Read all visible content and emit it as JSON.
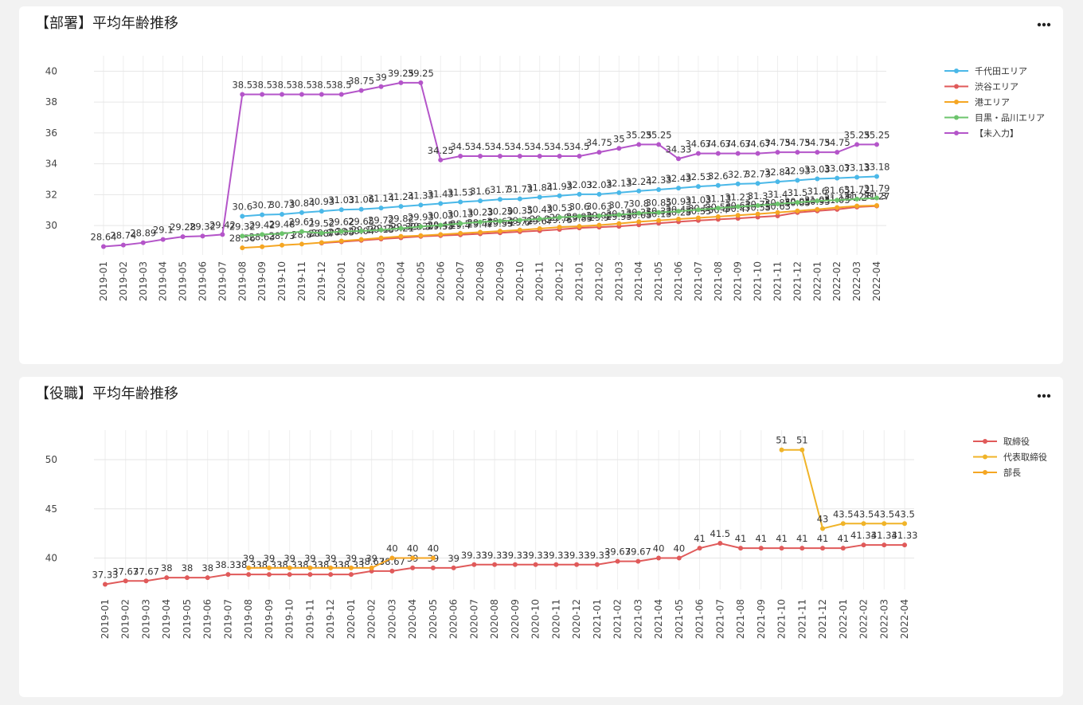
{
  "chart_data": [
    {
      "type": "line",
      "title": "【部署】平均年齢推移",
      "categories": [
        "2019-01",
        "2019-02",
        "2019-03",
        "2019-04",
        "2019-05",
        "2019-06",
        "2019-07",
        "2019-08",
        "2019-09",
        "2019-10",
        "2019-11",
        "2019-12",
        "2020-01",
        "2020-02",
        "2020-03",
        "2020-04",
        "2020-05",
        "2020-06",
        "2020-07",
        "2020-08",
        "2020-09",
        "2020-10",
        "2020-11",
        "2020-12",
        "2021-01",
        "2021-02",
        "2021-03",
        "2021-04",
        "2021-05",
        "2021-06",
        "2021-07",
        "2021-08",
        "2021-09",
        "2021-10",
        "2021-11",
        "2021-12",
        "2022-01",
        "2022-02",
        "2022-03",
        "2022-04"
      ],
      "ylim": [
        28.1,
        41
      ],
      "yticks": [
        30,
        32,
        34,
        36,
        38,
        40
      ],
      "grid": true,
      "series": [
        {
          "name": "千代田エリア",
          "color": "#4ab8e8",
          "values": [
            null,
            null,
            null,
            null,
            null,
            null,
            null,
            30.6,
            30.7,
            30.73,
            30.84,
            30.93,
            31.03,
            31.06,
            31.14,
            31.24,
            31.33,
            31.43,
            31.53,
            31.6,
            31.7,
            31.73,
            31.84,
            31.93,
            32.03,
            32.03,
            32.13,
            32.24,
            32.33,
            32.43,
            32.53,
            32.6,
            32.7,
            32.73,
            32.84,
            32.93,
            33.03,
            33.07,
            33.13,
            33.18
          ]
        },
        {
          "name": "渋谷エリア",
          "color": "#e05a5a",
          "values": [
            null,
            null,
            null,
            null,
            null,
            null,
            null,
            null,
            null,
            null,
            null,
            28.87,
            28.95,
            29.04,
            29.13,
            29.21,
            29.3,
            29.35,
            29.4,
            29.47,
            29.53,
            29.6,
            29.67,
            29.75,
            29.85,
            29.9,
            29.95,
            30.05,
            30.15,
            30.25,
            30.33,
            30.4,
            30.47,
            30.55,
            30.63,
            30.85,
            30.95,
            31.05,
            31.2,
            31.27
          ]
        },
        {
          "name": "港エリア",
          "color": "#f5a623",
          "values": [
            null,
            null,
            null,
            null,
            null,
            null,
            null,
            28.56,
            28.63,
            28.73,
            28.8,
            28.9,
            29,
            29.1,
            29.2,
            29.3,
            29.35,
            29.42,
            29.5,
            29.57,
            29.64,
            29.71,
            29.8,
            29.9,
            29.95,
            30.03,
            30.13,
            30.25,
            30.33,
            30.42,
            30.5,
            30.58,
            30.67,
            30.75,
            30.85,
            30.95,
            31.05,
            31.17,
            31.27,
            31.3
          ]
        },
        {
          "name": "目黒・品川エリア",
          "color": "#6cc46c",
          "values": [
            null,
            null,
            null,
            null,
            null,
            null,
            null,
            29.32,
            29.42,
            29.48,
            29.61,
            29.52,
            29.62,
            29.65,
            29.72,
            29.82,
            29.93,
            30.03,
            30.13,
            30.23,
            30.29,
            30.35,
            30.43,
            30.53,
            30.6,
            30.63,
            30.7,
            30.8,
            30.85,
            30.93,
            31.03,
            31.13,
            31.23,
            31.3,
            31.4,
            31.5,
            31.6,
            31.65,
            31.72,
            31.79
          ]
        },
        {
          "name": "【未入力】",
          "color": "#b455c9",
          "values": [
            28.64,
            28.74,
            28.89,
            29.1,
            29.28,
            29.32,
            29.42,
            38.5,
            38.5,
            38.5,
            38.5,
            38.5,
            38.5,
            38.75,
            39,
            39.25,
            39.25,
            34.25,
            34.5,
            34.5,
            34.5,
            34.5,
            34.5,
            34.5,
            34.5,
            34.75,
            35,
            35.25,
            35.25,
            34.33,
            34.67,
            34.67,
            34.67,
            34.67,
            34.75,
            34.75,
            34.75,
            34.75,
            35.25,
            35.25
          ]
        }
      ]
    },
    {
      "type": "line",
      "title": "【役職】平均年齢推移",
      "categories": [
        "2019-01",
        "2019-02",
        "2019-03",
        "2019-04",
        "2019-05",
        "2019-06",
        "2019-07",
        "2019-08",
        "2019-09",
        "2019-10",
        "2019-11",
        "2019-12",
        "2020-01",
        "2020-02",
        "2020-03",
        "2020-04",
        "2020-05",
        "2020-06",
        "2020-07",
        "2020-08",
        "2020-09",
        "2020-10",
        "2020-11",
        "2020-12",
        "2021-01",
        "2021-02",
        "2021-03",
        "2021-04",
        "2021-05",
        "2021-06",
        "2021-07",
        "2021-08",
        "2021-09",
        "2021-10",
        "2021-11",
        "2021-12",
        "2022-01",
        "2022-02",
        "2022-03",
        "2022-04"
      ],
      "ylim": [
        36.8,
        53
      ],
      "yticks": [
        40,
        45,
        50
      ],
      "grid": true,
      "series": [
        {
          "name": "取締役",
          "color": "#e05a5a",
          "values": [
            37.33,
            37.67,
            37.67,
            38,
            38,
            38,
            38.33,
            38.33,
            38.33,
            38.33,
            38.33,
            38.33,
            38.33,
            38.67,
            38.67,
            39,
            39,
            39,
            39.33,
            39.33,
            39.33,
            39.33,
            39.33,
            39.33,
            39.33,
            39.67,
            39.67,
            40,
            40,
            41,
            41.5,
            41,
            41,
            41,
            41,
            41,
            41,
            41.33,
            41.33,
            41.33
          ]
        },
        {
          "name": "代表取締役",
          "color": "#f0b429",
          "values": [
            null,
            null,
            null,
            null,
            null,
            null,
            null,
            null,
            null,
            null,
            null,
            null,
            null,
            null,
            null,
            null,
            null,
            null,
            null,
            null,
            null,
            null,
            null,
            null,
            null,
            null,
            null,
            null,
            null,
            null,
            null,
            null,
            null,
            51,
            51,
            43,
            43.5,
            43.5,
            43.5,
            43.5
          ]
        },
        {
          "name": "部長",
          "color": "#f5a623",
          "values": [
            null,
            null,
            null,
            null,
            null,
            null,
            null,
            39,
            39,
            39,
            39,
            39,
            39,
            39,
            40,
            40,
            40,
            null,
            null,
            null,
            null,
            null,
            null,
            null,
            null,
            null,
            null,
            null,
            null,
            null,
            null,
            null,
            null,
            null,
            null,
            null,
            null,
            null,
            null,
            null
          ]
        }
      ]
    }
  ]
}
